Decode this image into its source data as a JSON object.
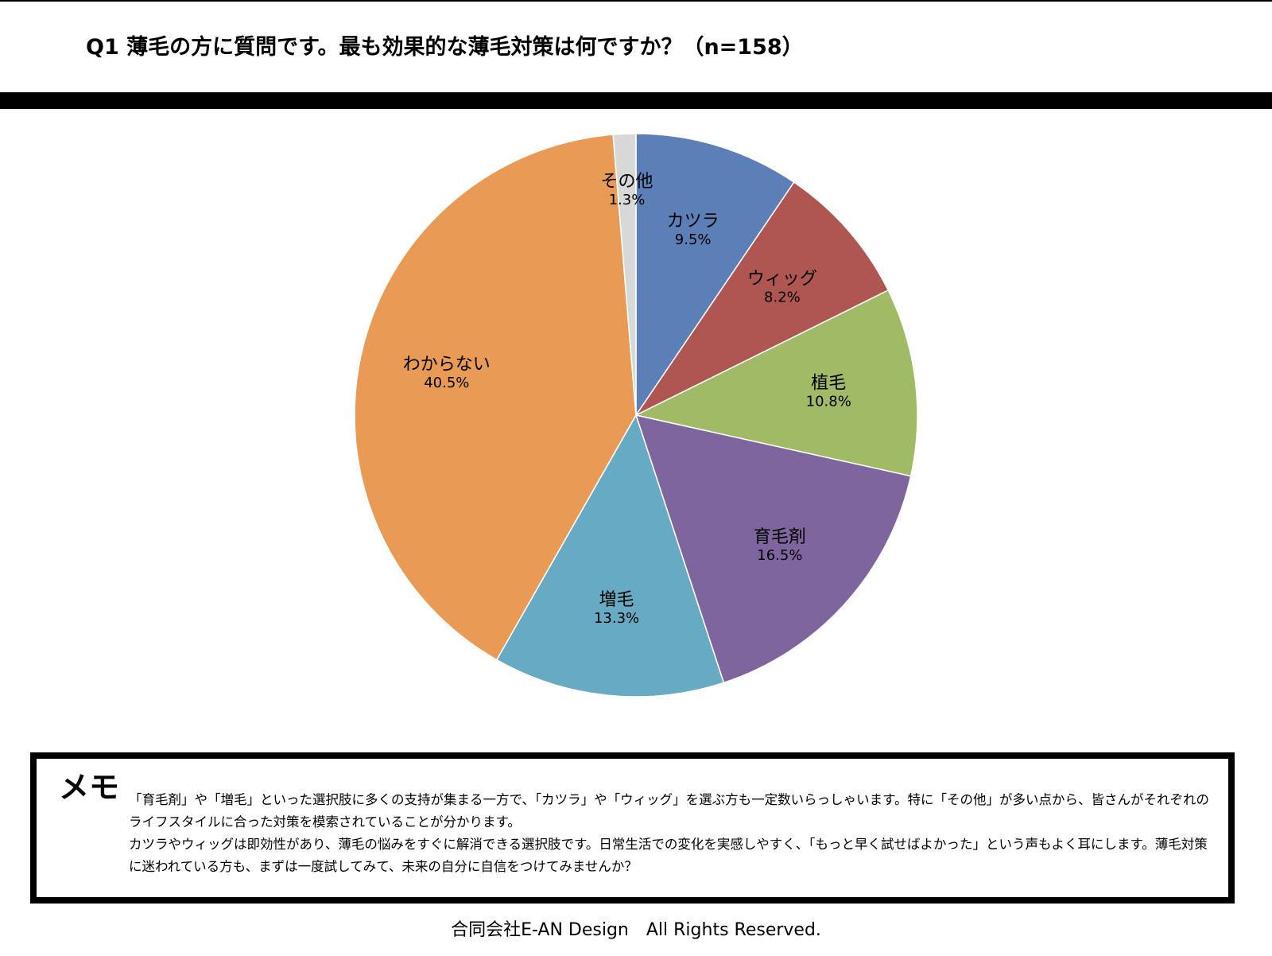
{
  "page": {
    "title": "Q1 薄毛の方に質問です。最も効果的な薄毛対策は何ですか？（n=158）"
  },
  "chart_data": {
    "type": "pie",
    "title": "Q1 薄毛の方に質問です。最も効果的な薄毛対策は何ですか？（n=158）",
    "start": "12 o'clock, clockwise",
    "slices": [
      {
        "label": "カツラ",
        "value": 9.5,
        "value_label": "9.5%",
        "color": "#5b7fb6"
      },
      {
        "label": "ウィッグ",
        "value": 8.2,
        "value_label": "8.2%",
        "color": "#b05652"
      },
      {
        "label": "植毛",
        "value": 10.8,
        "value_label": "10.8%",
        "color": "#a1ba66"
      },
      {
        "label": "育毛剤",
        "value": 16.5,
        "value_label": "16.5%",
        "color": "#7e659e"
      },
      {
        "label": "増毛",
        "value": 13.3,
        "value_label": "13.3%",
        "color": "#66abc3"
      },
      {
        "label": "わからない",
        "value": 40.5,
        "value_label": "40.5%",
        "color": "#e99b56"
      },
      {
        "label": "その他",
        "value": 1.3,
        "value_label": "1.3%",
        "color": "#d8d8d8"
      }
    ]
  },
  "memo": {
    "heading": "メモ",
    "text": "「育毛剤」や「増毛」といった選択肢に多くの支持が集まる一方で、「カツラ」や「ウィッグ」を選ぶ方も一定数いらっしゃいます。特に「その他」が多い点から、皆さんがそれぞれのライフスタイルに合った対策を模索されていることが分かります。\nカツラやウィッグは即効性があり、薄毛の悩みをすぐに解消できる選択肢です。日常生活での変化を実感しやすく、「もっと早く試せばよかった」という声もよく耳にします。薄毛対策に迷われている方も、まずは一度試してみて、未来の自分に自信をつけてみませんか？"
  },
  "footer": {
    "copyright": "合同会社E-AN Design　All Rights Reserved."
  }
}
